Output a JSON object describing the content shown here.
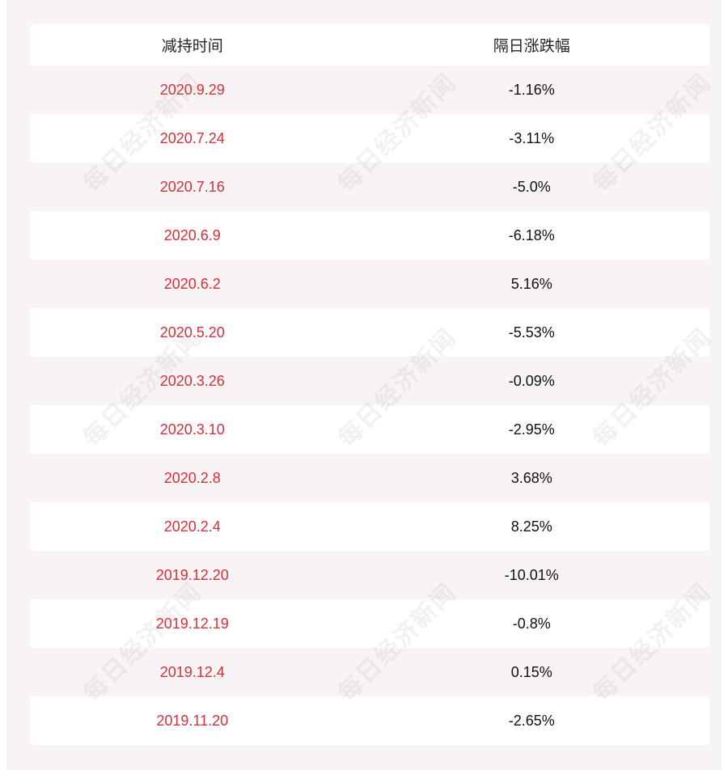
{
  "table": {
    "headers": [
      "减持时间",
      "隔日涨跌幅"
    ],
    "rows": [
      {
        "date": "2020.9.29",
        "change": "-1.16%"
      },
      {
        "date": "2020.7.24",
        "change": "-3.11%"
      },
      {
        "date": "2020.7.16",
        "change": "-5.0%"
      },
      {
        "date": "2020.6.9",
        "change": "-6.18%"
      },
      {
        "date": "2020.6.2",
        "change": "5.16%"
      },
      {
        "date": "2020.5.20",
        "change": "-5.53%"
      },
      {
        "date": "2020.3.26",
        "change": "-0.09%"
      },
      {
        "date": "2020.3.10",
        "change": "-2.95%"
      },
      {
        "date": "2020.2.8",
        "change": "3.68%"
      },
      {
        "date": "2020.2.4",
        "change": "8.25%"
      },
      {
        "date": "2019.12.20",
        "change": "-10.01%"
      },
      {
        "date": "2019.12.19",
        "change": "-0.8%"
      },
      {
        "date": "2019.12.4",
        "change": "0.15%"
      },
      {
        "date": "2019.11.20",
        "change": "-2.65%"
      }
    ]
  },
  "watermark": {
    "text": "每日经济新闻"
  },
  "colors": {
    "date": "#d62f3a",
    "value": "#111111",
    "background": "#f8f3f4",
    "row_alt": "#ffffff"
  }
}
